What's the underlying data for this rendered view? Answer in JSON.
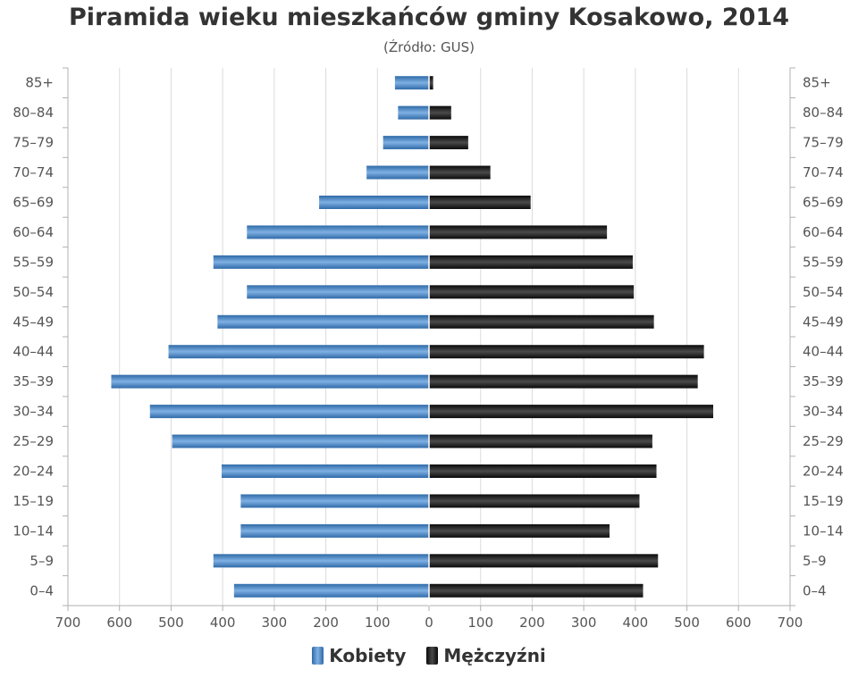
{
  "chart_data": {
    "type": "bar",
    "orientation": "horizontal",
    "title": "Piramida wieku mieszkańców gminy Kosakowo, 2014",
    "subtitle": "(Źródło: GUS)",
    "categories": [
      "85+",
      "80-84",
      "75-79",
      "70-74",
      "65-69",
      "60-64",
      "55-59",
      "50-54",
      "45-49",
      "40-44",
      "35-39",
      "30-34",
      "25-29",
      "20-24",
      "15-19",
      "10-14",
      "5-9",
      "0-4"
    ],
    "series": [
      {
        "name": "Kobiety",
        "color": "#3d7cc0",
        "values": [
          66,
          60,
          89,
          121,
          213,
          353,
          418,
          353,
          410,
          505,
          616,
          541,
          498,
          402,
          365,
          365,
          418,
          378
        ]
      },
      {
        "name": "Mężczyźni",
        "color": "#1c1c1c",
        "values": [
          8,
          43,
          76,
          119,
          197,
          345,
          395,
          397,
          436,
          533,
          521,
          551,
          433,
          441,
          408,
          350,
          444,
          415
        ]
      }
    ],
    "xlim": [
      -700,
      700
    ],
    "x_tick_labels": [
      "700",
      "600",
      "500",
      "400",
      "300",
      "200",
      "100",
      "0",
      "100",
      "200",
      "300",
      "400",
      "500",
      "600",
      "700"
    ],
    "grid": true,
    "legend_position": "bottom-center"
  }
}
